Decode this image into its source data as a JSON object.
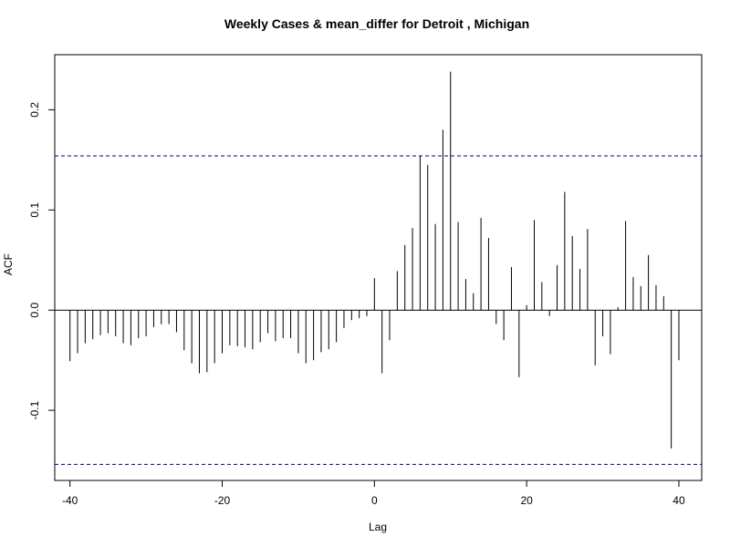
{
  "chart_data": {
    "type": "bar",
    "title": "Weekly Cases & mean_differ for Detroit , Michigan",
    "xlabel": "Lag",
    "ylabel": "ACF",
    "xlim": [
      -42,
      43
    ],
    "ylim": [
      -0.17,
      0.255
    ],
    "x_ticks": [
      -40,
      -20,
      0,
      20,
      40
    ],
    "y_ticks": [
      -0.1,
      0.0,
      0.1,
      0.2
    ],
    "y_tick_labels": [
      "-0.1",
      "0.0",
      "0.1",
      "0.2"
    ],
    "confidence_band": [
      -0.154,
      0.154
    ],
    "grid": false,
    "lags": [
      -40,
      -39,
      -38,
      -37,
      -36,
      -35,
      -34,
      -33,
      -32,
      -31,
      -30,
      -29,
      -28,
      -27,
      -26,
      -25,
      -24,
      -23,
      -22,
      -21,
      -20,
      -19,
      -18,
      -17,
      -16,
      -15,
      -14,
      -13,
      -12,
      -11,
      -10,
      -9,
      -8,
      -7,
      -6,
      -5,
      -4,
      -3,
      -2,
      -1,
      0,
      1,
      2,
      3,
      4,
      5,
      6,
      7,
      8,
      9,
      10,
      11,
      12,
      13,
      14,
      15,
      16,
      17,
      18,
      19,
      20,
      21,
      22,
      23,
      24,
      25,
      26,
      27,
      28,
      29,
      30,
      31,
      32,
      33,
      34,
      35,
      36,
      37,
      38,
      39,
      40
    ],
    "values": [
      -0.051,
      -0.043,
      -0.033,
      -0.029,
      -0.025,
      -0.023,
      -0.026,
      -0.033,
      -0.035,
      -0.028,
      -0.026,
      -0.017,
      -0.014,
      -0.014,
      -0.022,
      -0.04,
      -0.053,
      -0.063,
      -0.062,
      -0.053,
      -0.043,
      -0.035,
      -0.036,
      -0.037,
      -0.039,
      -0.032,
      -0.023,
      -0.031,
      -0.028,
      -0.028,
      -0.043,
      -0.053,
      -0.05,
      -0.042,
      -0.039,
      -0.032,
      -0.018,
      -0.01,
      -0.008,
      -0.006,
      0.032,
      -0.063,
      -0.03,
      0.039,
      0.065,
      0.082,
      0.154,
      0.145,
      0.086,
      0.18,
      0.238,
      0.088,
      0.031,
      0.017,
      0.092,
      0.072,
      -0.014,
      -0.03,
      0.043,
      -0.067,
      0.005,
      0.09,
      0.028,
      -0.006,
      0.045,
      0.118,
      0.074,
      0.041,
      0.081,
      -0.055,
      -0.026,
      -0.044,
      0.003,
      0.089,
      0.033,
      0.024,
      0.055,
      0.025,
      0.014,
      -0.138,
      -0.05
    ]
  },
  "colors": {
    "bars": "#000000",
    "confidence_band": "#00008b",
    "frame": "#000000",
    "background": "#ffffff"
  }
}
